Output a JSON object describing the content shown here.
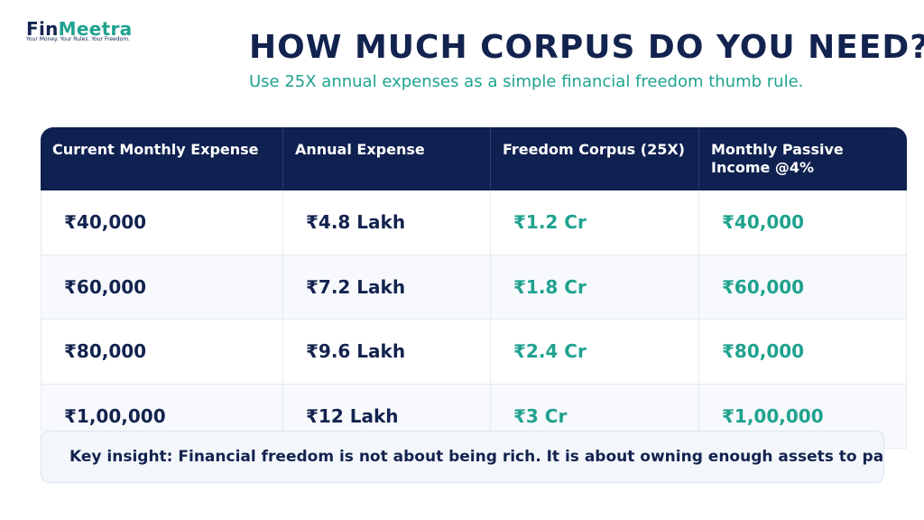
{
  "logo": {
    "name_part1": "Fin",
    "name_part2": "Meetra",
    "tagline": "Your Money. Your Rules. Your Freedom."
  },
  "header": {
    "title": "HOW MUCH CORPUS DO YOU NEED?",
    "subtitle": "Use 25X annual expenses as a simple financial freedom thumb rule."
  },
  "table": {
    "columns": [
      "Current Monthly Expense",
      "Annual Expense",
      "Freedom Corpus (25X)",
      "Monthly Passive Income @4%"
    ],
    "rows": [
      [
        "₹40,000",
        "₹4.8 Lakh",
        "₹1.2 Cr",
        "₹40,000"
      ],
      [
        "₹60,000",
        "₹7.2 Lakh",
        "₹1.8 Cr",
        "₹60,000"
      ],
      [
        "₹80,000",
        "₹9.6 Lakh",
        "₹2.4 Cr",
        "₹80,000"
      ],
      [
        "₹1,00,000",
        "₹12 Lakh",
        "₹3 Cr",
        "₹1,00,000"
      ]
    ]
  },
  "insight": "Key insight: Financial freedom is not about being rich. It is about owning enough assets to pa"
}
